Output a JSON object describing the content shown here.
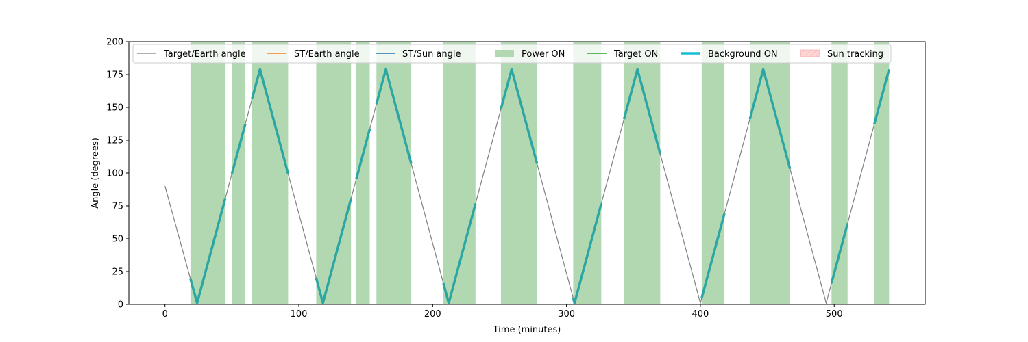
{
  "chart_data": {
    "type": "line",
    "xlabel": "Time (minutes)",
    "ylabel": "Angle (degrees)",
    "xlim": [
      -27,
      568
    ],
    "ylim": [
      0,
      200
    ],
    "x_ticks": [
      0,
      100,
      200,
      300,
      400,
      500
    ],
    "y_ticks": [
      0,
      25,
      50,
      75,
      100,
      125,
      150,
      175,
      200
    ],
    "grid": false,
    "legend": {
      "placement": "top",
      "entries": [
        {
          "label": "Target/Earth angle",
          "style": "thin-line",
          "color": "#808080"
        },
        {
          "label": "ST/Earth angle",
          "style": "line",
          "color": "#ff7f0e"
        },
        {
          "label": "ST/Sun angle",
          "style": "line",
          "color": "#1f77b4"
        },
        {
          "label": "Power ON",
          "style": "patch",
          "color": "#b2d8b2"
        },
        {
          "label": "Target ON",
          "style": "line",
          "color": "#2ca02c"
        },
        {
          "label": "Background ON",
          "style": "thick-line",
          "color": "#17becf"
        },
        {
          "label": "Sun tracking",
          "style": "hatch-patch",
          "color": "#ffd6d6"
        }
      ]
    },
    "colors": {
      "target_earth": "#808080",
      "power_on": "#b2d8b2",
      "background_on": "#2ba6a2",
      "axes": "#000000"
    },
    "series": [
      {
        "name": "Target/Earth angle",
        "x": [
          0,
          24,
          71,
          118,
          165,
          212,
          259,
          306,
          353,
          400,
          447,
          494,
          541
        ],
        "y": [
          90,
          1,
          179,
          1,
          179,
          1,
          179,
          1,
          179,
          1,
          179,
          1,
          179
        ]
      }
    ],
    "power_on_intervals": [
      [
        19,
        45
      ],
      [
        50,
        60
      ],
      [
        65,
        92
      ],
      [
        113,
        139
      ],
      [
        143,
        153
      ],
      [
        158,
        184
      ],
      [
        208,
        232
      ],
      [
        251,
        278
      ],
      [
        305,
        326
      ],
      [
        343,
        370
      ],
      [
        401,
        418
      ],
      [
        437,
        467
      ],
      [
        498,
        510
      ],
      [
        530,
        541
      ]
    ],
    "background_on_intervals": [
      [
        19,
        45
      ],
      [
        50,
        60
      ],
      [
        65,
        92
      ],
      [
        113,
        139
      ],
      [
        143,
        153
      ],
      [
        158,
        184
      ],
      [
        208,
        232
      ],
      [
        251,
        278
      ],
      [
        305,
        326
      ],
      [
        343,
        370
      ],
      [
        401,
        418
      ],
      [
        437,
        467
      ],
      [
        498,
        510
      ],
      [
        530,
        541
      ]
    ]
  }
}
